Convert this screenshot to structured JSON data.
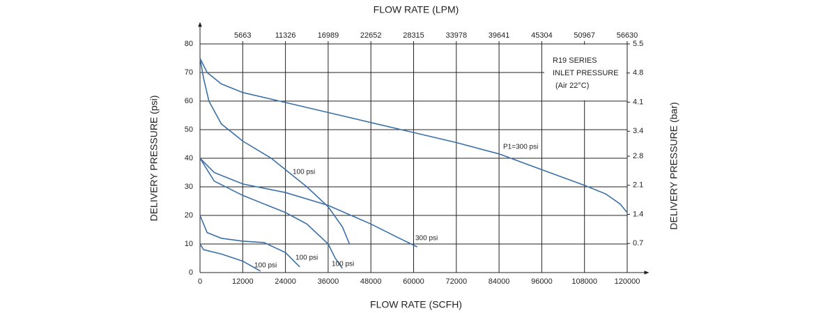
{
  "chart_data": {
    "type": "line",
    "title_top": "FLOW RATE (LPM)",
    "xlabel": "FLOW RATE (SCFH)",
    "ylabel": "DELIVERY PRESSURE (psi)",
    "y2label": "DELIVERY PRESSURE (bar)",
    "annotations": [
      "R19 SERIES",
      "INLET PRESSURE",
      "(Air 22°C)"
    ],
    "xlim": [
      0,
      120000
    ],
    "xticks": [
      0,
      12000,
      24000,
      36000,
      48000,
      60000,
      72000,
      84000,
      96000,
      108000,
      120000
    ],
    "x2lim": [
      0,
      56630
    ],
    "x2ticks": [
      5663,
      11326,
      16989,
      22652,
      28315,
      33978,
      39641,
      45304,
      50967,
      56630
    ],
    "ylim": [
      0,
      80
    ],
    "yticks": [
      0,
      10,
      20,
      30,
      40,
      50,
      60,
      70,
      80
    ],
    "y2lim": [
      0,
      5.5
    ],
    "y2ticks": [
      0.7,
      1.4,
      2.1,
      2.8,
      3.4,
      4.1,
      4.8,
      5.5
    ],
    "grid": true,
    "series": [
      {
        "name": "P1=300 psi",
        "color": "#3b6fa8",
        "x": [
          0,
          2000,
          6000,
          12000,
          24000,
          36000,
          48000,
          60000,
          72000,
          84000,
          96000,
          108000,
          114000,
          118000,
          120000
        ],
        "values": [
          75,
          70,
          66,
          63,
          59.5,
          56,
          52.5,
          49,
          45.5,
          41.5,
          36,
          30.5,
          27.5,
          24,
          21
        ]
      },
      {
        "name": "100 psi",
        "color": "#3b6fa8",
        "x": [
          0,
          1000,
          2500,
          6000,
          12000,
          20000,
          24000,
          30000,
          36000,
          40000,
          42000
        ],
        "values": [
          75,
          68,
          60,
          52,
          46,
          40,
          36,
          30,
          23,
          16,
          10
        ]
      },
      {
        "name": "300 psi",
        "color": "#3b6fa8",
        "x": [
          0,
          4000,
          12000,
          24000,
          36000,
          48000,
          56000,
          61000
        ],
        "values": [
          40,
          35,
          31,
          28,
          23.5,
          17,
          12,
          9
        ]
      },
      {
        "name": "100 psi",
        "color": "#3b6fa8",
        "x": [
          0,
          4000,
          12000,
          24000,
          30000,
          36000,
          38000,
          40000
        ],
        "values": [
          40,
          32,
          27,
          21,
          17,
          10,
          5,
          1.5
        ]
      },
      {
        "name": "100 psi",
        "color": "#3b6fa8",
        "x": [
          0,
          2000,
          6000,
          12000,
          18000,
          24000,
          28000
        ],
        "values": [
          20,
          14,
          12,
          11,
          10.5,
          7,
          2
        ]
      },
      {
        "name": "100 psi",
        "color": "#3b6fa8",
        "x": [
          0,
          1000,
          6000,
          12000,
          17000
        ],
        "values": [
          10,
          8,
          6.5,
          4,
          0.5
        ]
      }
    ]
  }
}
